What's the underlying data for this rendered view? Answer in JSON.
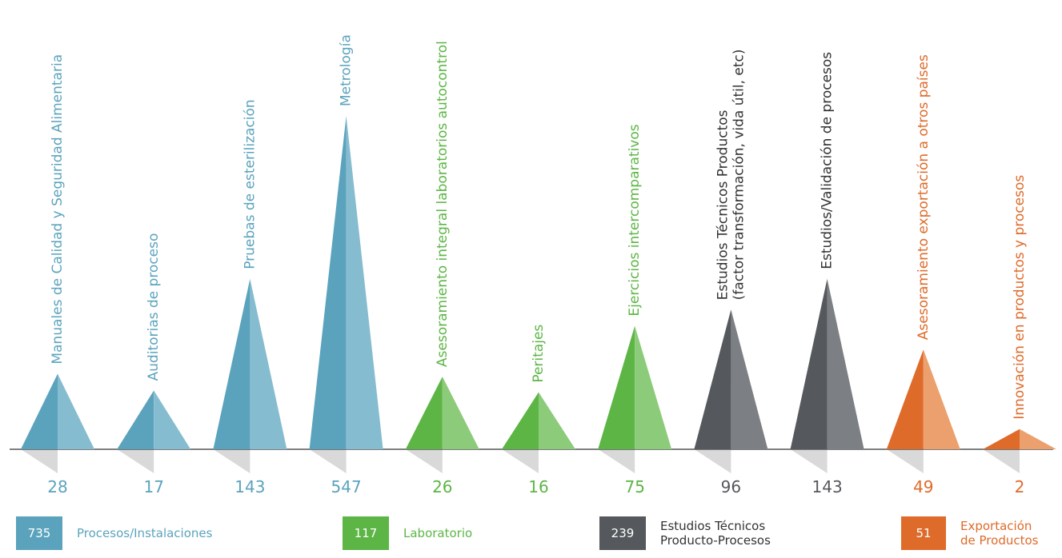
{
  "colors": {
    "blue": "#5ba3bd",
    "blue_light": "#86bccf",
    "green": "#5db546",
    "green_light": "#8ccb7a",
    "gray": "#55585c",
    "gray_light": "#7c7f84",
    "orange": "#de6b2a",
    "orange_light": "#eba06e",
    "baseline": "#555555",
    "shadow": "#d9d9d9"
  },
  "chart_data": {
    "type": "bar",
    "categories": [
      "Manuales de Calidad y Seguridad Alimentaria",
      "Auditorias de proceso",
      "Pruebas de esterilización",
      "Metrología",
      "Asesoramiento integral laboratorios autocontrol",
      "Peritajes",
      "Ejercicios intercomparativos",
      "Estudios Técnicos Productos (factor transformación, vida útil, etc)",
      "Estudios/Validación de procesos",
      "Asesoramiento exportación a otros países",
      "Innovación en productos y procesos"
    ],
    "label_lines": [
      [
        "Manuales de Calidad y Seguridad Alimentaria"
      ],
      [
        "Auditorias de proceso"
      ],
      [
        "Pruebas de esterilización"
      ],
      [
        "Metrología"
      ],
      [
        "Asesoramiento integral laboratorios autocontrol"
      ],
      [
        "Peritajes"
      ],
      [
        "Ejercicios intercomparativos"
      ],
      [
        "Estudios Técnicos Productos",
        "(factor transformación, vida útil, etc)"
      ],
      [
        "Estudios/Validación de procesos"
      ],
      [
        "Asesoramiento exportación a otros países"
      ],
      [
        "Innovación en productos y procesos"
      ]
    ],
    "values": [
      28,
      17,
      143,
      547,
      26,
      16,
      75,
      96,
      143,
      49,
      2
    ],
    "groups": [
      "blue",
      "blue",
      "blue",
      "blue",
      "green",
      "green",
      "green",
      "gray",
      "gray",
      "orange",
      "orange"
    ],
    "ylim": [
      0,
      547
    ]
  },
  "legend": [
    {
      "total": "735",
      "label_lines": [
        "Procesos/Instalaciones"
      ],
      "group": "blue"
    },
    {
      "total": "117",
      "label_lines": [
        "Laboratorio"
      ],
      "group": "green"
    },
    {
      "total": "239",
      "label_lines": [
        "Estudios Técnicos",
        "Producto-Procesos"
      ],
      "group": "gray"
    },
    {
      "total": "51",
      "label_lines": [
        "Exportación",
        "de Productos"
      ],
      "group": "orange"
    }
  ]
}
